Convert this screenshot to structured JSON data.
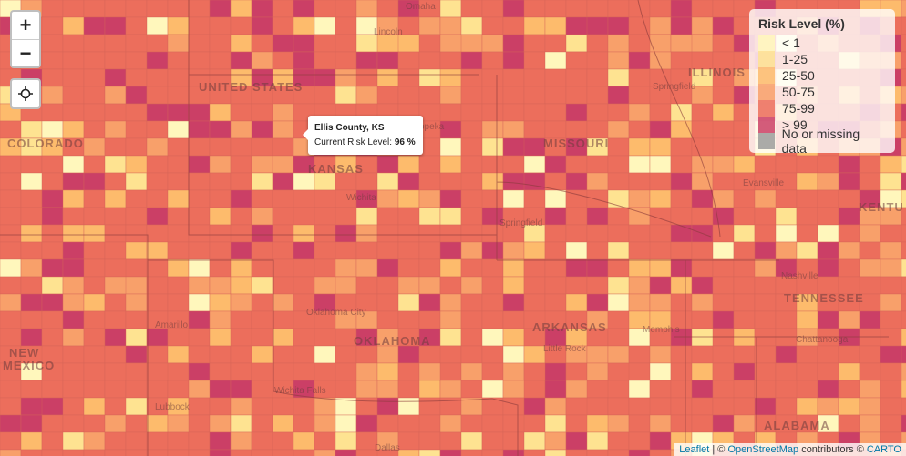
{
  "controls": {
    "zoom_in": "+",
    "zoom_out": "−"
  },
  "legend": {
    "title": "Risk Level (%)",
    "items": [
      {
        "label": "< 1",
        "color": "#fff7bc"
      },
      {
        "label": "1-25",
        "color": "#fee391"
      },
      {
        "label": "25-50",
        "color": "#fdbb6c"
      },
      {
        "label": "50-75",
        "color": "#f8a06a"
      },
      {
        "label": "75-99",
        "color": "#ec6e5c"
      },
      {
        "label": "> 99",
        "color": "#cb3f66"
      },
      {
        "label": "No or missing data",
        "color": "#9c9c9c"
      }
    ]
  },
  "tooltip": {
    "title": "Ellis County, KS",
    "text": "Current Risk Level:",
    "value": "96 %"
  },
  "attribution": {
    "leaflet": "Leaflet",
    "separator": "|",
    "prefix": "©",
    "osm": "OpenStreetMap",
    "middle": "contributors ©",
    "carto": "CARTO"
  },
  "map_labels": [
    "UNITED STATES",
    "KANSAS",
    "MISSOURI",
    "ILLINOIS",
    "COLORADO",
    "OKLAHOMA",
    "ARKANSAS",
    "TENNESSEE",
    "NEW",
    "MEXICO",
    "ALABAMA",
    "KENTU",
    "Omaha",
    "Lincoln",
    "Topeka",
    "Wichita",
    "Springfield",
    "Springfield",
    "Oklahoma City",
    "Amarillo",
    "Lubbock",
    "Wichita Falls",
    "Dallas",
    "Little Rock",
    "Memphis",
    "Nashville",
    "Chattanooga",
    "Evansville"
  ]
}
